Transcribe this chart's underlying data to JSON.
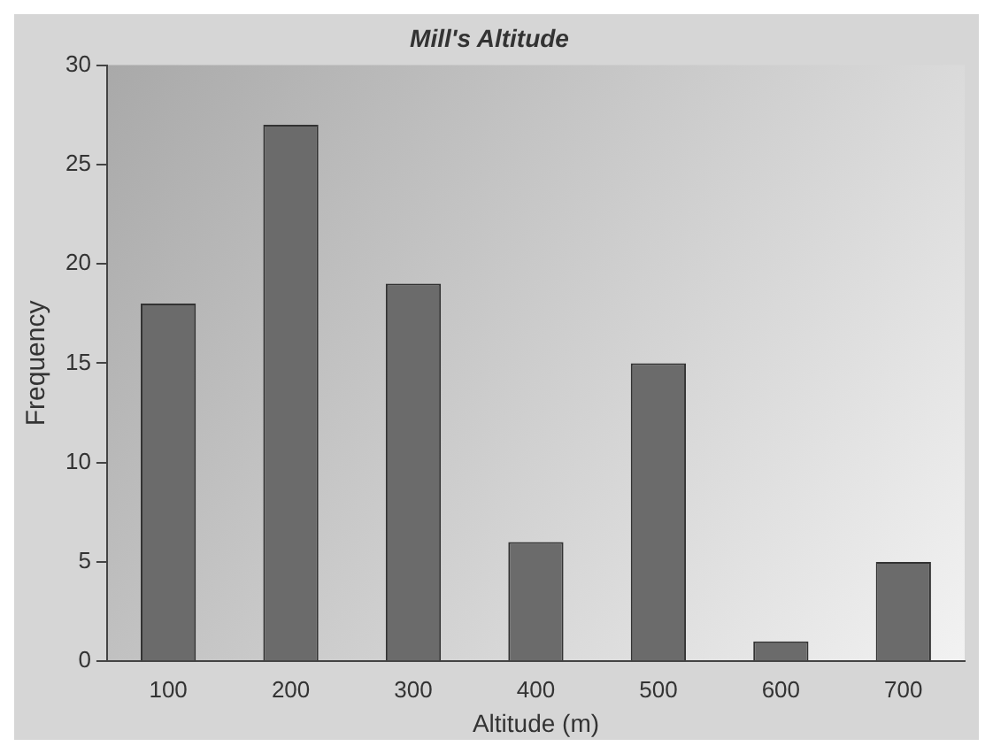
{
  "chart_data": {
    "type": "bar",
    "title": "Mill's Altitude",
    "xlabel": "Altitude (m)",
    "ylabel": "Frequency",
    "categories": [
      "100",
      "200",
      "300",
      "400",
      "500",
      "600",
      "700"
    ],
    "values": [
      18,
      27,
      19,
      6,
      15,
      1,
      5
    ],
    "color": "#6b6b6b",
    "ylim": [
      0,
      30
    ],
    "yticks": [
      0,
      5,
      10,
      15,
      20,
      25,
      30
    ],
    "grid": false,
    "legend": false
  }
}
